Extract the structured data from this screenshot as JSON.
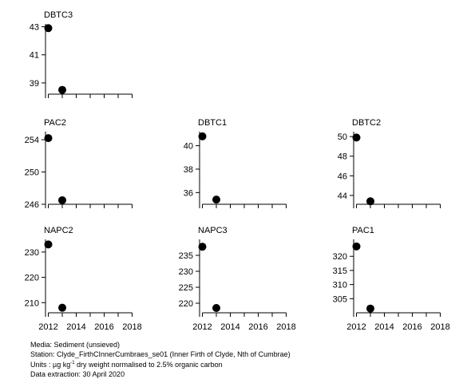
{
  "chart_data": [
    {
      "type": "scatter",
      "title": "DBTC3",
      "x": [
        2012,
        2013
      ],
      "y": [
        42.9,
        38.5
      ],
      "yticks": [
        39,
        41,
        43
      ],
      "ylim": [
        38.2,
        43.2
      ],
      "xlim": [
        2011.8,
        2018.2
      ],
      "xticks": [
        2012,
        2014,
        2016,
        2018
      ],
      "show_xtick_labels": false
    },
    {
      "type": "scatter",
      "title": "PAC2",
      "x": [
        2012,
        2013
      ],
      "y": [
        254.2,
        246.5
      ],
      "yticks": [
        246,
        250,
        254
      ],
      "ylim": [
        246,
        255
      ],
      "xlim": [
        2011.8,
        2018.2
      ],
      "xticks": [
        2012,
        2014,
        2016,
        2018
      ],
      "show_xtick_labels": false
    },
    {
      "type": "scatter",
      "title": "DBTC1",
      "x": [
        2012,
        2013
      ],
      "y": [
        40.8,
        35.4
      ],
      "yticks": [
        36,
        38,
        40
      ],
      "ylim": [
        35,
        41.2
      ],
      "xlim": [
        2011.8,
        2018.2
      ],
      "xticks": [
        2012,
        2014,
        2016,
        2018
      ],
      "show_xtick_labels": false
    },
    {
      "type": "scatter",
      "title": "DBTC2",
      "x": [
        2012,
        2013
      ],
      "y": [
        49.9,
        43.4
      ],
      "yticks": [
        44,
        46,
        48,
        50
      ],
      "ylim": [
        43.1,
        50.5
      ],
      "xlim": [
        2011.8,
        2018.2
      ],
      "xticks": [
        2012,
        2014,
        2016,
        2018
      ],
      "show_xtick_labels": false
    },
    {
      "type": "scatter",
      "title": "NAPC2",
      "x": [
        2012,
        2013
      ],
      "y": [
        233,
        208
      ],
      "yticks": [
        210,
        220,
        230
      ],
      "ylim": [
        206,
        235
      ],
      "xlim": [
        2011.8,
        2018.2
      ],
      "xticks": [
        2012,
        2014,
        2016,
        2018
      ],
      "show_xtick_labels": true
    },
    {
      "type": "scatter",
      "title": "NAPC3",
      "x": [
        2012,
        2013
      ],
      "y": [
        237.7,
        218.5
      ],
      "yticks": [
        220,
        225,
        230,
        235
      ],
      "ylim": [
        217,
        240
      ],
      "xlim": [
        2011.8,
        2018.2
      ],
      "xticks": [
        2012,
        2014,
        2016,
        2018
      ],
      "show_xtick_labels": true
    },
    {
      "type": "scatter",
      "title": "PAC1",
      "x": [
        2012,
        2013
      ],
      "y": [
        323.5,
        301.5
      ],
      "yticks": [
        305,
        310,
        315,
        320
      ],
      "ylim": [
        300,
        326
      ],
      "xlim": [
        2011.8,
        2018.2
      ],
      "xticks": [
        2012,
        2014,
        2016,
        2018
      ],
      "show_xtick_labels": true
    }
  ],
  "footer": {
    "media": "Media: Sediment (unsieved)",
    "station": "Station: Clyde_FirthCInnerCumbraes_se01 (Inner Firth of Clyde, Nth of Cumbrae)",
    "units_prefix": "Units : µg kg",
    "units_sup": "-1",
    "units_suffix": " dry weight normalised to 2.5% organic carbon",
    "extraction": "Data extraction: 30 April 2020"
  }
}
